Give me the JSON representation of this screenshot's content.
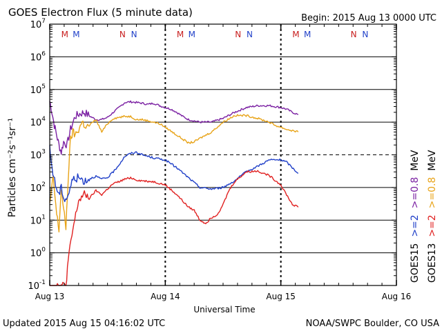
{
  "chart_data": {
    "type": "line",
    "title": "GOES Electron Flux (5 minute data)",
    "begin_label": "Begin: 2015 Aug 13 0000 UTC",
    "xlabel": "Universal Time",
    "ylabel": "Particles cm⁻²s⁻¹sr⁻¹",
    "x_unit": "days since 2015 Aug 13 0000 UTC",
    "xlim": [
      0,
      3
    ],
    "x_ticks": [
      {
        "x": 0,
        "label": "Aug 13"
      },
      {
        "x": 1,
        "label": "Aug 14"
      },
      {
        "x": 2,
        "label": "Aug 15"
      },
      {
        "x": 3,
        "label": "Aug 16"
      }
    ],
    "y_scale": "log",
    "ylim": [
      0.1,
      10000000
    ],
    "y_ticks": [
      {
        "value": 0.1,
        "base": "10",
        "exp": "-1"
      },
      {
        "value": 1,
        "base": "10",
        "exp": "0"
      },
      {
        "value": 10,
        "base": "10",
        "exp": "1"
      },
      {
        "value": 100,
        "base": "10",
        "exp": "2"
      },
      {
        "value": 1000,
        "base": "10",
        "exp": "3"
      },
      {
        "value": 10000,
        "base": "10",
        "exp": "4"
      },
      {
        "value": 100000,
        "base": "10",
        "exp": "5"
      },
      {
        "value": 1000000,
        "base": "10",
        "exp": "6"
      },
      {
        "value": 10000000,
        "base": "10",
        "exp": "7"
      }
    ],
    "alert_threshold": 1000,
    "legend": [
      {
        "label": "GOES15",
        "color": "#000000"
      },
      {
        "label": ">=2",
        "color": "#1f3fc8"
      },
      {
        "label": ">=0.8",
        "color": "#7a1fa2"
      },
      {
        "label": "MeV",
        "color": "#000000"
      },
      {
        "label": "GOES13",
        "color": "#000000"
      },
      {
        "label": ">=2",
        "color": "#e02020"
      },
      {
        "label": ">=0.8",
        "color": "#e8a317"
      },
      {
        "label": "MeV",
        "color": "#000000"
      }
    ],
    "markers": [
      {
        "label": "M",
        "x": 0.13,
        "color": "#c81e1e"
      },
      {
        "label": "M",
        "x": 0.23,
        "color": "#1f3fc8"
      },
      {
        "label": "N",
        "x": 0.63,
        "color": "#c81e1e"
      },
      {
        "label": "N",
        "x": 0.73,
        "color": "#1f3fc8"
      },
      {
        "label": "M",
        "x": 1.13,
        "color": "#c81e1e"
      },
      {
        "label": "M",
        "x": 1.23,
        "color": "#1f3fc8"
      },
      {
        "label": "N",
        "x": 1.63,
        "color": "#c81e1e"
      },
      {
        "label": "N",
        "x": 1.73,
        "color": "#1f3fc8"
      },
      {
        "label": "M",
        "x": 2.13,
        "color": "#c81e1e"
      },
      {
        "label": "M",
        "x": 2.23,
        "color": "#1f3fc8"
      },
      {
        "label": "N",
        "x": 2.63,
        "color": "#c81e1e"
      },
      {
        "label": "N",
        "x": 2.73,
        "color": "#1f3fc8"
      }
    ],
    "series": [
      {
        "name": "GOES15 >=0.8 MeV",
        "color": "#7a1fa2",
        "x": [
          0,
          0.02,
          0.04,
          0.06,
          0.08,
          0.1,
          0.12,
          0.15,
          0.18,
          0.22,
          0.26,
          0.3,
          0.35,
          0.4,
          0.45,
          0.5,
          0.55,
          0.6,
          0.65,
          0.7,
          0.75,
          0.8,
          0.85,
          0.9,
          0.95,
          1.0,
          1.05,
          1.1,
          1.15,
          1.2,
          1.3,
          1.4,
          1.5,
          1.6,
          1.7,
          1.8,
          1.9,
          1.95,
          2.0,
          2.05,
          2.1,
          2.15
        ],
        "y": [
          45000,
          20000,
          8000,
          4000,
          2000,
          1200,
          2500,
          2000,
          6000,
          15000,
          18000,
          20000,
          15000,
          12000,
          12000,
          14000,
          20000,
          28000,
          40000,
          42000,
          40000,
          38000,
          35000,
          38000,
          32000,
          28000,
          25000,
          20000,
          15000,
          12000,
          10000,
          10000,
          13000,
          20000,
          28000,
          32000,
          32000,
          30000,
          28000,
          25000,
          20000,
          17000
        ]
      },
      {
        "name": "GOES13 >=0.8 MeV",
        "color": "#e8a317",
        "x": [
          0,
          0.03,
          0.06,
          0.08,
          0.1,
          0.12,
          0.14,
          0.16,
          0.18,
          0.2,
          0.22,
          0.25,
          0.28,
          0.32,
          0.36,
          0.4,
          0.45,
          0.5,
          0.55,
          0.6,
          0.65,
          0.7,
          0.75,
          0.8,
          0.85,
          0.9,
          0.95,
          1.0,
          1.1,
          1.2,
          1.25,
          1.3,
          1.4,
          1.5,
          1.6,
          1.7,
          1.8,
          1.9,
          1.95,
          2.0,
          2.05,
          2.1,
          2.15
        ],
        "y": [
          30,
          200,
          15,
          5,
          100,
          20,
          6,
          200,
          3000,
          5000,
          4000,
          6000,
          10000,
          7000,
          9000,
          12000,
          5000,
          9000,
          13000,
          14000,
          15000,
          15000,
          12000,
          12000,
          11000,
          10000,
          9000,
          7000,
          4000,
          2300,
          2500,
          3200,
          5000,
          10000,
          16000,
          16000,
          13000,
          10000,
          8000,
          7000,
          6000,
          5500,
          5000
        ]
      },
      {
        "name": "GOES15 >=2 MeV",
        "color": "#1f3fc8",
        "x": [
          0,
          0.02,
          0.05,
          0.08,
          0.1,
          0.13,
          0.16,
          0.2,
          0.25,
          0.3,
          0.35,
          0.4,
          0.45,
          0.5,
          0.55,
          0.6,
          0.65,
          0.7,
          0.75,
          0.8,
          0.85,
          0.9,
          1.0,
          1.1,
          1.2,
          1.3,
          1.4,
          1.5,
          1.6,
          1.7,
          1.8,
          1.9,
          2.0,
          2.05,
          2.1,
          2.15
        ],
        "y": [
          1500,
          400,
          120,
          60,
          100,
          40,
          60,
          180,
          200,
          160,
          190,
          220,
          180,
          200,
          300,
          500,
          900,
          1100,
          1200,
          1000,
          900,
          800,
          700,
          400,
          200,
          100,
          90,
          100,
          160,
          300,
          450,
          700,
          700,
          600,
          400,
          270
        ]
      },
      {
        "name": "GOES13 >=2 MeV",
        "color": "#e02020",
        "x": [
          0,
          0.03,
          0.06,
          0.08,
          0.1,
          0.12,
          0.14,
          0.16,
          0.2,
          0.25,
          0.3,
          0.35,
          0.4,
          0.45,
          0.5,
          0.55,
          0.6,
          0.65,
          0.7,
          0.75,
          0.8,
          0.9,
          1.0,
          1.1,
          1.2,
          1.25,
          1.3,
          1.35,
          1.4,
          1.45,
          1.5,
          1.55,
          1.6,
          1.7,
          1.8,
          1.9,
          2.0,
          2.05,
          2.1,
          2.15
        ],
        "y": [
          0.1,
          0.1,
          0.1,
          0.1,
          0.1,
          0.1,
          0.1,
          0.6,
          5,
          40,
          60,
          50,
          80,
          60,
          90,
          130,
          150,
          180,
          200,
          170,
          160,
          150,
          120,
          60,
          25,
          20,
          10,
          8,
          12,
          15,
          30,
          80,
          150,
          300,
          320,
          230,
          120,
          60,
          30,
          25
        ]
      }
    ]
  },
  "footer": {
    "updated": "Updated 2015 Aug 15 04:16:02 UTC",
    "credit": "NOAA/SWPC Boulder, CO USA"
  }
}
